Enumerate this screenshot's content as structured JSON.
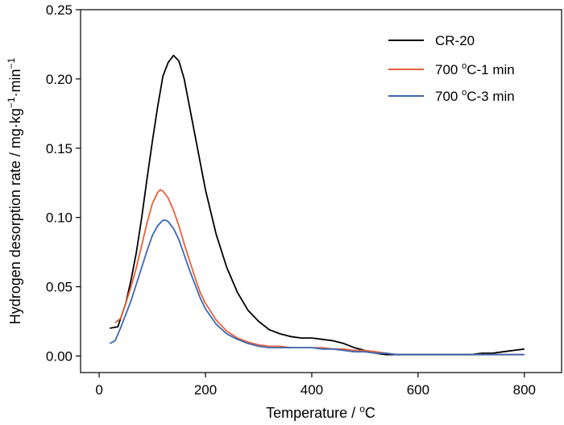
{
  "chart_data": {
    "type": "line",
    "title": "",
    "xlabel": "Temperature / ",
    "xlabel_unit_sup": "o",
    "xlabel_unit": "C",
    "ylabel": "Hydrogen desorption rate / mg·kg",
    "ylabel_sup1": "−1",
    "ylabel_mid": "·min",
    "ylabel_sup2": "−1",
    "xlim": [
      -35,
      870
    ],
    "ylim": [
      -0.012,
      0.25
    ],
    "xticks": [
      0,
      200,
      400,
      600,
      800
    ],
    "xtick_labels": [
      "0",
      "200",
      "400",
      "600",
      "800"
    ],
    "yticks": [
      0.0,
      0.05,
      0.1,
      0.15,
      0.2,
      0.25
    ],
    "ytick_labels": [
      "0.00",
      "0.05",
      "0.10",
      "0.15",
      "0.20",
      "0.25"
    ],
    "grid": false,
    "legend_position": "top-right",
    "series": [
      {
        "name": "CR-20",
        "legend_main": "CR-20",
        "legend_sup": "",
        "legend_suffix": "",
        "color": "#000000",
        "x": [
          20,
          35,
          50,
          60,
          70,
          80,
          90,
          100,
          110,
          120,
          130,
          140,
          150,
          160,
          170,
          180,
          190,
          200,
          220,
          240,
          260,
          280,
          300,
          320,
          340,
          360,
          380,
          400,
          420,
          440,
          460,
          480,
          500,
          520,
          540,
          560,
          580,
          600,
          620,
          640,
          660,
          680,
          700,
          720,
          740,
          760,
          780,
          800
        ],
        "y": [
          0.02,
          0.021,
          0.038,
          0.055,
          0.075,
          0.1,
          0.128,
          0.155,
          0.18,
          0.202,
          0.212,
          0.217,
          0.213,
          0.2,
          0.18,
          0.16,
          0.14,
          0.12,
          0.088,
          0.064,
          0.046,
          0.033,
          0.025,
          0.019,
          0.016,
          0.014,
          0.013,
          0.013,
          0.012,
          0.011,
          0.009,
          0.006,
          0.004,
          0.002,
          0.001,
          0.001,
          0.001,
          0.001,
          0.001,
          0.001,
          0.001,
          0.001,
          0.001,
          0.002,
          0.002,
          0.003,
          0.004,
          0.005
        ]
      },
      {
        "name": "700 °C-1 min",
        "legend_main": "700 ",
        "legend_sup": "o",
        "legend_suffix": "C-1 min",
        "color": "#e8603a",
        "x": [
          30,
          40,
          50,
          60,
          70,
          80,
          90,
          100,
          110,
          115,
          120,
          130,
          140,
          150,
          160,
          170,
          180,
          190,
          200,
          220,
          240,
          260,
          280,
          300,
          320,
          340,
          360,
          380,
          400,
          420,
          440,
          460,
          480,
          500,
          520,
          540,
          560,
          580,
          600,
          620,
          640,
          660,
          680,
          700,
          720,
          740,
          760,
          780,
          800
        ],
        "y": [
          0.024,
          0.027,
          0.038,
          0.05,
          0.064,
          0.08,
          0.096,
          0.11,
          0.118,
          0.12,
          0.119,
          0.114,
          0.105,
          0.094,
          0.081,
          0.069,
          0.057,
          0.046,
          0.038,
          0.026,
          0.018,
          0.013,
          0.01,
          0.008,
          0.007,
          0.007,
          0.006,
          0.006,
          0.006,
          0.006,
          0.005,
          0.005,
          0.004,
          0.004,
          0.003,
          0.002,
          0.001,
          0.001,
          0.001,
          0.001,
          0.001,
          0.001,
          0.001,
          0.001,
          0.001,
          0.001,
          0.001,
          0.001,
          0.001
        ]
      },
      {
        "name": "700 °C-3 min",
        "legend_main": "700 ",
        "legend_sup": "o",
        "legend_suffix": "C-3 min",
        "color": "#3b68b4",
        "x": [
          20,
          30,
          40,
          50,
          60,
          70,
          80,
          90,
          100,
          110,
          120,
          125,
          130,
          140,
          150,
          160,
          170,
          180,
          190,
          200,
          220,
          240,
          260,
          280,
          300,
          320,
          340,
          360,
          380,
          400,
          420,
          440,
          460,
          480,
          500,
          520,
          540,
          560,
          580,
          600,
          620,
          640,
          660,
          680,
          700,
          720,
          740,
          760,
          780,
          800
        ],
        "y": [
          0.009,
          0.011,
          0.02,
          0.03,
          0.04,
          0.052,
          0.064,
          0.076,
          0.087,
          0.094,
          0.098,
          0.098,
          0.097,
          0.092,
          0.084,
          0.073,
          0.062,
          0.052,
          0.042,
          0.034,
          0.023,
          0.016,
          0.012,
          0.009,
          0.007,
          0.006,
          0.006,
          0.006,
          0.006,
          0.006,
          0.005,
          0.005,
          0.004,
          0.003,
          0.003,
          0.002,
          0.002,
          0.001,
          0.001,
          0.001,
          0.001,
          0.001,
          0.001,
          0.001,
          0.001,
          0.001,
          0.001,
          0.001,
          0.001,
          0.001
        ]
      }
    ]
  }
}
